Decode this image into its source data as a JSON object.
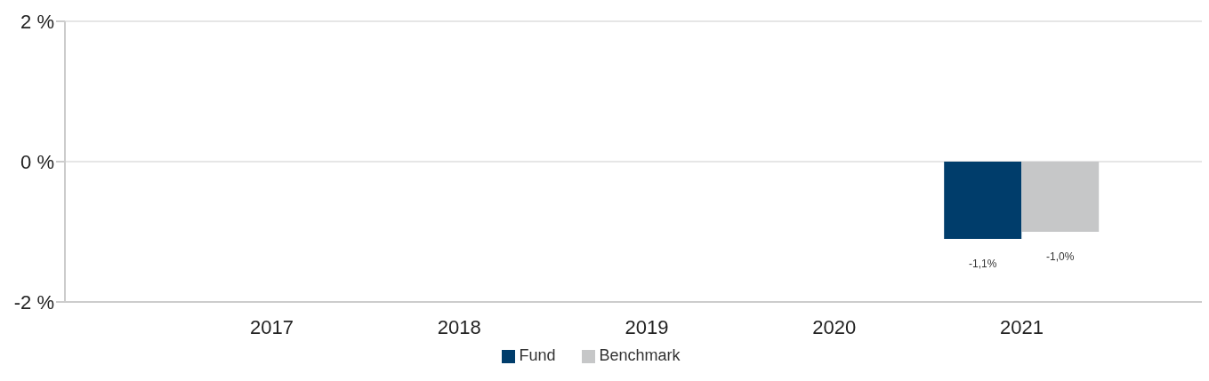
{
  "chart_data": {
    "type": "bar",
    "categories": [
      "2017",
      "2018",
      "2019",
      "2020",
      "2021"
    ],
    "series": [
      {
        "name": "Fund",
        "color": "#003d6b",
        "values": [
          null,
          null,
          null,
          null,
          -1.1
        ],
        "value_labels": [
          null,
          null,
          null,
          null,
          "-1,1%"
        ]
      },
      {
        "name": "Benchmark",
        "color": "#c6c7c8",
        "values": [
          null,
          null,
          null,
          null,
          -1.0
        ],
        "value_labels": [
          null,
          null,
          null,
          null,
          "-1,0%"
        ]
      }
    ],
    "ylim": [
      -2,
      2
    ],
    "yticks": [
      {
        "value": -2,
        "label": "-2 %"
      },
      {
        "value": 0,
        "label": "0 %"
      },
      {
        "value": 2,
        "label": "2 %"
      }
    ],
    "grid": "y",
    "legend": "bottom"
  }
}
